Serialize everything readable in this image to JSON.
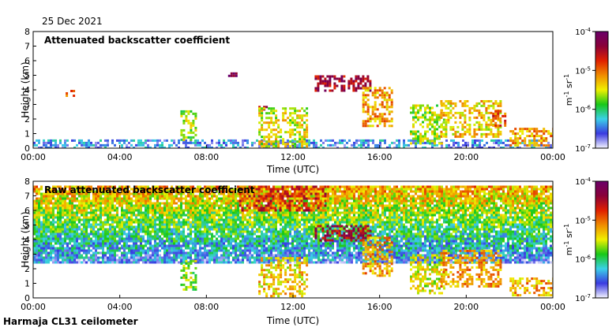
{
  "date": "25 Dec 2021",
  "footer": "Harmaja CL31 ceilometer",
  "colors": {
    "colormap": [
      "#f4f4ff",
      "#3a3ae0",
      "#3bd0e8",
      "#18c818",
      "#f0f000",
      "#f08c00",
      "#e02000",
      "#8a0038",
      "#6a006a"
    ]
  },
  "chart_data": [
    {
      "type": "heatmap",
      "title": "Attenuated backscatter coefficient",
      "xlabel": "Time (UTC)",
      "ylabel": "Height (km)",
      "x_ticks": [
        "00:00",
        "04:00",
        "08:00",
        "12:00",
        "16:00",
        "20:00",
        "00:00"
      ],
      "xlim_hours": [
        0,
        24
      ],
      "y_ticks": [
        0,
        1,
        2,
        3,
        4,
        5,
        6,
        7,
        8
      ],
      "ylim": [
        0,
        8
      ],
      "colorbar": {
        "ticks": [
          "10",
          "10",
          "10",
          "10"
        ],
        "tick_exponents": [
          "-4",
          "-5",
          "-6",
          "-7"
        ],
        "tick_values": [
          0.0001,
          1e-05,
          1e-06,
          1e-07
        ],
        "label": "m",
        "label_exp1": "-1",
        "label_mid": " sr",
        "label_exp2": "-1",
        "range": [
          1e-07,
          0.0001
        ]
      },
      "features": [
        {
          "t": [
            0,
            24
          ],
          "h": [
            0,
            0.6
          ],
          "level": 0.18,
          "desc": "surface layer"
        },
        {
          "t": [
            1.5,
            1.9
          ],
          "h": [
            3.6,
            4.0
          ],
          "level": 0.65
        },
        {
          "t": [
            6.8,
            7.5
          ],
          "h": [
            0.5,
            2.6
          ],
          "level": 0.45
        },
        {
          "t": [
            9.0,
            9.4
          ],
          "h": [
            5.0,
            5.2
          ],
          "level": 0.95
        },
        {
          "t": [
            10.4,
            10.8
          ],
          "h": [
            2.7,
            2.9
          ],
          "level": 0.9
        },
        {
          "t": [
            10.4,
            12.6
          ],
          "h": [
            0.2,
            2.8
          ],
          "level": 0.5
        },
        {
          "t": [
            13.0,
            15.6
          ],
          "h": [
            3.9,
            5.0
          ],
          "level": 0.85
        },
        {
          "t": [
            15.2,
            16.6
          ],
          "h": [
            1.6,
            4.2
          ],
          "level": 0.6
        },
        {
          "t": [
            17.4,
            19.0
          ],
          "h": [
            0.3,
            3.0
          ],
          "level": 0.45
        },
        {
          "t": [
            18.8,
            21.6
          ],
          "h": [
            0.8,
            3.3
          ],
          "level": 0.55
        },
        {
          "t": [
            21.2,
            21.8
          ],
          "h": [
            1.6,
            2.6
          ],
          "level": 0.7
        },
        {
          "t": [
            22.0,
            24.0
          ],
          "h": [
            0.2,
            1.4
          ],
          "level": 0.6
        }
      ]
    },
    {
      "type": "heatmap",
      "title": "Raw attenuated backscatter coefficient",
      "xlabel": "Time (UTC)",
      "ylabel": "Height (km)",
      "x_ticks": [
        "00:00",
        "04:00",
        "08:00",
        "12:00",
        "16:00",
        "20:00",
        "00:00"
      ],
      "xlim_hours": [
        0,
        24
      ],
      "y_ticks": [
        0,
        1,
        2,
        3,
        4,
        5,
        6,
        7,
        8
      ],
      "ylim": [
        0,
        8
      ],
      "colorbar": {
        "ticks": [
          "10",
          "10",
          "10",
          "10"
        ],
        "tick_exponents": [
          "-4",
          "-5",
          "-6",
          "-7"
        ],
        "tick_values": [
          0.0001,
          1e-05,
          1e-06,
          1e-07
        ],
        "label": "m",
        "label_exp1": "-1",
        "label_mid": " sr",
        "label_exp2": "-1",
        "range": [
          1e-07,
          0.0001
        ]
      },
      "features": [
        {
          "t": [
            0,
            24
          ],
          "h": [
            2.5,
            7.7
          ],
          "level": 0.45,
          "desc": "noise increasing with height"
        },
        {
          "t": [
            9.5,
            13.5
          ],
          "h": [
            6.0,
            7.7
          ],
          "level": 0.75
        },
        {
          "t": [
            6.8,
            7.5
          ],
          "h": [
            0.5,
            2.6
          ],
          "level": 0.45
        },
        {
          "t": [
            10.4,
            12.6
          ],
          "h": [
            0.2,
            2.8
          ],
          "level": 0.55
        },
        {
          "t": [
            13.0,
            15.6
          ],
          "h": [
            3.9,
            5.0
          ],
          "level": 0.85
        },
        {
          "t": [
            15.2,
            16.6
          ],
          "h": [
            1.6,
            4.2
          ],
          "level": 0.6
        },
        {
          "t": [
            17.4,
            19.0
          ],
          "h": [
            0.3,
            3.0
          ],
          "level": 0.5
        },
        {
          "t": [
            18.8,
            21.6
          ],
          "h": [
            0.8,
            3.3
          ],
          "level": 0.6
        },
        {
          "t": [
            22.0,
            24.0
          ],
          "h": [
            0.2,
            1.4
          ],
          "level": 0.6
        }
      ]
    }
  ]
}
